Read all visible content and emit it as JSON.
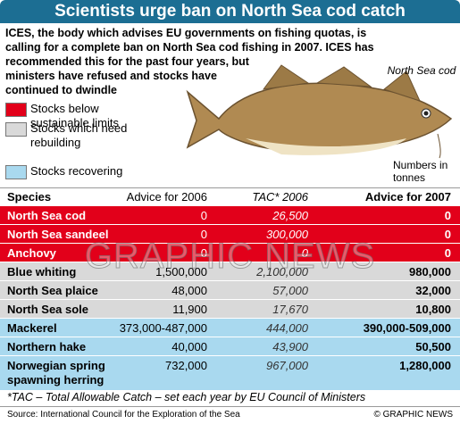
{
  "header": {
    "title": "Scientists urge ban on North Sea cod catch"
  },
  "intro": [
    "ICES, the body which advises EU governments on fishing quotas, is",
    "calling for a complete ban on North Sea cod fishing in 2007. ICES has",
    "recommended this for the past four years, but",
    "ministers have refused and stocks have",
    "continued to dwindle"
  ],
  "legend": [
    {
      "label": "Stocks below sustainable limits",
      "color": "#e2001a"
    },
    {
      "label": "Stocks which need rebuilding",
      "color": "#d9d9d9"
    },
    {
      "label": "Stocks recovering",
      "color": "#a9d9ef"
    }
  ],
  "fish_label": "North Sea cod",
  "units_note": "Numbers in tonnes",
  "table": {
    "columns": [
      "Species",
      "Advice for 2006",
      "TAC* 2006",
      "Advice for 2007"
    ],
    "rows": [
      {
        "cells": [
          "North Sea cod",
          "0",
          "26,500",
          "0"
        ],
        "color": "#e2001a"
      },
      {
        "cells": [
          "North Sea sandeel",
          "0",
          "300,000",
          "0"
        ],
        "color": "#e2001a"
      },
      {
        "cells": [
          "Anchovy",
          "0",
          "0",
          "0"
        ],
        "color": "#e2001a"
      },
      {
        "cells": [
          "Blue whiting",
          "1,500,000",
          "2,100,000",
          "980,000"
        ],
        "color": "#d9d9d9"
      },
      {
        "cells": [
          "North Sea plaice",
          "48,000",
          "57,000",
          "32,000"
        ],
        "color": "#d9d9d9"
      },
      {
        "cells": [
          "North Sea sole",
          "11,900",
          "17,670",
          "10,800"
        ],
        "color": "#d9d9d9"
      },
      {
        "cells": [
          "Mackerel",
          "373,000-487,000",
          "444,000",
          "390,000-509,000"
        ],
        "color": "#a9d9ef"
      },
      {
        "cells": [
          "Northern hake",
          "40,000",
          "43,900",
          "50,500"
        ],
        "color": "#a9d9ef"
      },
      {
        "cells": [
          "Norwegian spring spawning herring",
          "732,000",
          "967,000",
          "1,280,000"
        ],
        "color": "#a9d9ef"
      }
    ]
  },
  "footnote": "*TAC – Total Allowable Catch – set each year by EU Council of Ministers",
  "source": "Source: International Council for the Exploration of the Sea",
  "credit": "© GRAPHIC NEWS",
  "watermark": "GRAPHIC NEWS"
}
